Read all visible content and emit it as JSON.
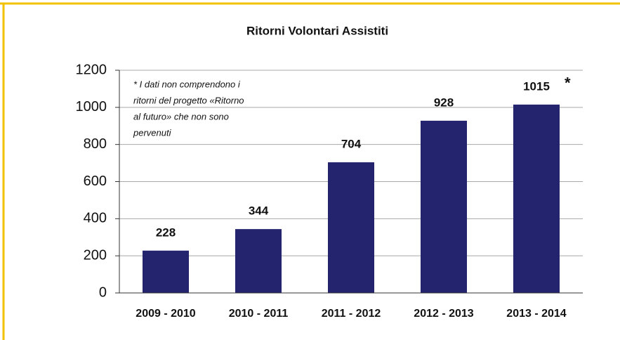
{
  "chart_data": {
    "type": "bar",
    "title": "Ritorni Volontari Assistiti",
    "categories": [
      "2009 - 2010",
      "2010 - 2011",
      "2011 - 2012",
      "2012 - 2013",
      "2013 - 2014"
    ],
    "values": [
      228,
      344,
      704,
      928,
      1015
    ],
    "color": "#24246e",
    "ylim": [
      0,
      1200
    ],
    "yticks": [
      0,
      200,
      400,
      600,
      800,
      1000,
      1200
    ],
    "grid": true,
    "annotation_marker": "*",
    "note": [
      "* I dati non comprendono i",
      "ritorni del progetto «Ritorno",
      "al futuro» che non sono",
      "pervenuti"
    ]
  }
}
